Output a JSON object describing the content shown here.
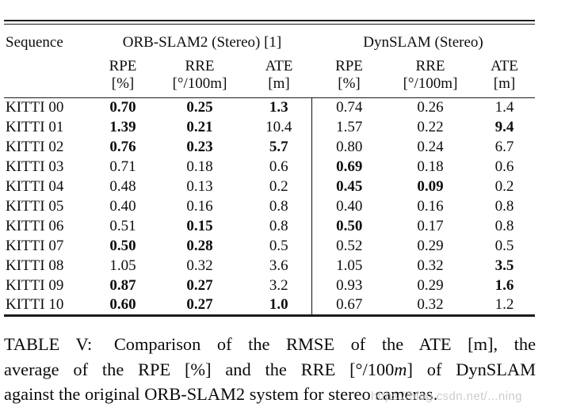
{
  "page": {
    "background": "#ffffff",
    "text_color": "#0d0d0d",
    "rule_color": "#1b1b1b"
  },
  "table": {
    "sequence_header": "Sequence",
    "groups": [
      {
        "label": "ORB-SLAM2 (Stereo) [1]"
      },
      {
        "label": "DynSLAM (Stereo)"
      }
    ],
    "metrics": [
      {
        "name": "RPE",
        "unit": "[%]"
      },
      {
        "name": "RRE",
        "unit": "[°/100m]"
      },
      {
        "name": "ATE",
        "unit": "[m]"
      }
    ],
    "rows": [
      {
        "seq": "KITTI 00",
        "cells": [
          {
            "v": "0.70",
            "b": 1
          },
          {
            "v": "0.25",
            "b": 1
          },
          {
            "v": "1.3",
            "b": 1
          },
          {
            "v": "0.74",
            "b": 0
          },
          {
            "v": "0.26",
            "b": 0
          },
          {
            "v": "1.4",
            "b": 0
          }
        ]
      },
      {
        "seq": "KITTI 01",
        "cells": [
          {
            "v": "1.39",
            "b": 1
          },
          {
            "v": "0.21",
            "b": 1
          },
          {
            "v": "10.4",
            "b": 0
          },
          {
            "v": "1.57",
            "b": 0
          },
          {
            "v": "0.22",
            "b": 0
          },
          {
            "v": "9.4",
            "b": 1
          }
        ]
      },
      {
        "seq": "KITTI 02",
        "cells": [
          {
            "v": "0.76",
            "b": 1
          },
          {
            "v": "0.23",
            "b": 1
          },
          {
            "v": "5.7",
            "b": 1
          },
          {
            "v": "0.80",
            "b": 0
          },
          {
            "v": "0.24",
            "b": 0
          },
          {
            "v": "6.7",
            "b": 0
          }
        ]
      },
      {
        "seq": "KITTI 03",
        "cells": [
          {
            "v": "0.71",
            "b": 0
          },
          {
            "v": "0.18",
            "b": 0
          },
          {
            "v": "0.6",
            "b": 0
          },
          {
            "v": "0.69",
            "b": 1
          },
          {
            "v": "0.18",
            "b": 0
          },
          {
            "v": "0.6",
            "b": 0
          }
        ]
      },
      {
        "seq": "KITTI 04",
        "cells": [
          {
            "v": "0.48",
            "b": 0
          },
          {
            "v": "0.13",
            "b": 0
          },
          {
            "v": "0.2",
            "b": 0
          },
          {
            "v": "0.45",
            "b": 1
          },
          {
            "v": "0.09",
            "b": 1
          },
          {
            "v": "0.2",
            "b": 0
          }
        ]
      },
      {
        "seq": "KITTI 05",
        "cells": [
          {
            "v": "0.40",
            "b": 0
          },
          {
            "v": "0.16",
            "b": 0
          },
          {
            "v": "0.8",
            "b": 0
          },
          {
            "v": "0.40",
            "b": 0
          },
          {
            "v": "0.16",
            "b": 0
          },
          {
            "v": "0.8",
            "b": 0
          }
        ]
      },
      {
        "seq": "KITTI 06",
        "cells": [
          {
            "v": "0.51",
            "b": 0
          },
          {
            "v": "0.15",
            "b": 1
          },
          {
            "v": "0.8",
            "b": 0
          },
          {
            "v": "0.50",
            "b": 1
          },
          {
            "v": "0.17",
            "b": 0
          },
          {
            "v": "0.8",
            "b": 0
          }
        ]
      },
      {
        "seq": "KITTI 07",
        "cells": [
          {
            "v": "0.50",
            "b": 1
          },
          {
            "v": "0.28",
            "b": 1
          },
          {
            "v": "0.5",
            "b": 0
          },
          {
            "v": "0.52",
            "b": 0
          },
          {
            "v": "0.29",
            "b": 0
          },
          {
            "v": "0.5",
            "b": 0
          }
        ]
      },
      {
        "seq": "KITTI 08",
        "cells": [
          {
            "v": "1.05",
            "b": 0
          },
          {
            "v": "0.32",
            "b": 0
          },
          {
            "v": "3.6",
            "b": 0
          },
          {
            "v": "1.05",
            "b": 0
          },
          {
            "v": "0.32",
            "b": 0
          },
          {
            "v": "3.5",
            "b": 1
          }
        ]
      },
      {
        "seq": "KITTI 09",
        "cells": [
          {
            "v": "0.87",
            "b": 1
          },
          {
            "v": "0.27",
            "b": 1
          },
          {
            "v": "3.2",
            "b": 0
          },
          {
            "v": "0.93",
            "b": 0
          },
          {
            "v": "0.29",
            "b": 0
          },
          {
            "v": "1.6",
            "b": 1
          }
        ]
      },
      {
        "seq": "KITTI 10",
        "cells": [
          {
            "v": "0.60",
            "b": 1
          },
          {
            "v": "0.27",
            "b": 1
          },
          {
            "v": "1.0",
            "b": 1
          },
          {
            "v": "0.67",
            "b": 0
          },
          {
            "v": "0.32",
            "b": 0
          },
          {
            "v": "1.2",
            "b": 0
          }
        ]
      }
    ]
  },
  "caption": {
    "line1_label": "TABLE V:",
    "line1_text": "Comparison of the RMSE of the ATE [m], the",
    "line2_pre": "average of the RPE [%] and the RRE [°/100",
    "line2_m": "m",
    "line2_post": "] of DynSLAM",
    "line3": "against the original ORB-SLAM2 system for stereo cameras."
  },
  "watermark": {
    "text": "https://blog.csdn.net/...ning",
    "color": "#c4c4c4"
  }
}
